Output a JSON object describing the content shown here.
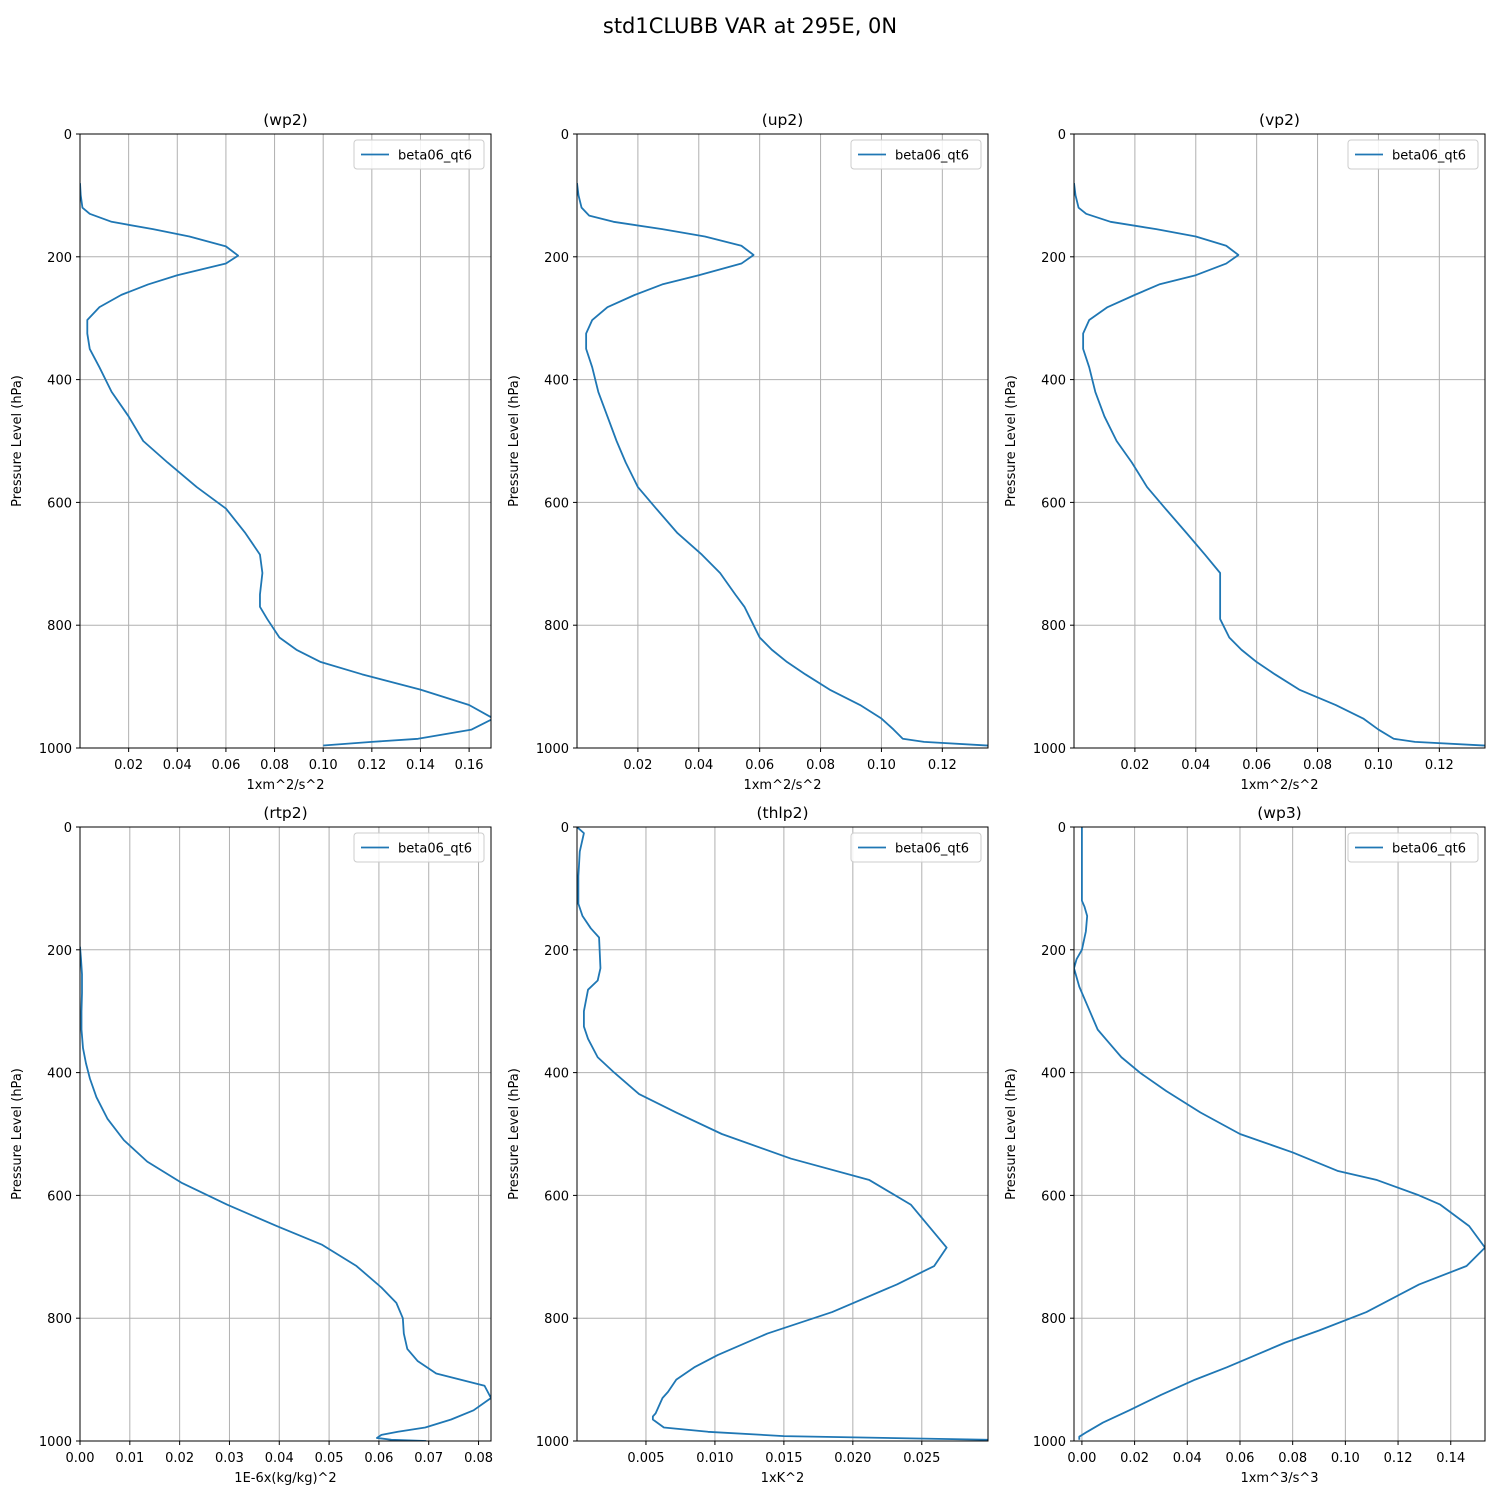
{
  "suptitle": "std1CLUBB VAR at 295E, 0N",
  "colors": {
    "series": "#1f77b4",
    "grid": "#b0b0b0",
    "axes": "#000000"
  },
  "chart_data": [
    {
      "type": "line",
      "title": "(wp2)",
      "xlabel": "1xm^2/s^2",
      "ylabel": "Pressure Level (hPa)",
      "xlim": [
        0.0,
        0.169
      ],
      "ylim": [
        1000,
        0
      ],
      "xticks": [
        0.02,
        0.04,
        0.06,
        0.08,
        0.1,
        0.12,
        0.14,
        0.16
      ],
      "xticklabels": [
        "0.02",
        "0.04",
        "0.06",
        "0.08",
        "0.10",
        "0.12",
        "0.14",
        "0.16"
      ],
      "yticks": [
        0,
        200,
        400,
        600,
        800,
        1000
      ],
      "yticklabels": [
        "0",
        "200",
        "400",
        "600",
        "800",
        "1000"
      ],
      "grid": true,
      "legend": "upper right",
      "series": [
        {
          "name": "beta06_qt6",
          "x": [
            0.0,
            0.0003,
            0.001,
            0.004,
            0.013,
            0.03,
            0.045,
            0.06,
            0.065,
            0.06,
            0.04,
            0.028,
            0.017,
            0.008,
            0.003,
            0.003,
            0.004,
            0.008,
            0.013,
            0.02,
            0.026,
            0.036,
            0.048,
            0.06,
            0.068,
            0.074,
            0.075,
            0.074,
            0.074,
            0.077,
            0.082,
            0.089,
            0.099,
            0.116,
            0.14,
            0.16,
            0.17,
            0.161,
            0.139,
            0.12,
            0.1
          ],
          "y": [
            80,
            100,
            120,
            130,
            143,
            155,
            167,
            183,
            198,
            211,
            230,
            245,
            262,
            282,
            303,
            325,
            350,
            380,
            420,
            460,
            500,
            535,
            575,
            610,
            650,
            685,
            715,
            750,
            770,
            790,
            820,
            840,
            860,
            880,
            905,
            930,
            952,
            970,
            985,
            990,
            996
          ]
        }
      ]
    },
    {
      "type": "line",
      "title": "(up2)",
      "xlabel": "1xm^2/s^2",
      "ylabel": "Pressure Level (hPa)",
      "xlim": [
        0.0,
        0.135
      ],
      "ylim": [
        1000,
        0
      ],
      "xticks": [
        0.02,
        0.04,
        0.06,
        0.08,
        0.1,
        0.12
      ],
      "xticklabels": [
        "0.02",
        "0.04",
        "0.06",
        "0.08",
        "0.10",
        "0.12"
      ],
      "yticks": [
        0,
        200,
        400,
        600,
        800,
        1000
      ],
      "yticklabels": [
        "0",
        "200",
        "400",
        "600",
        "800",
        "1000"
      ],
      "grid": true,
      "legend": "upper right",
      "series": [
        {
          "name": "beta06_qt6",
          "x": [
            0.0,
            0.0005,
            0.0015,
            0.004,
            0.012,
            0.028,
            0.042,
            0.054,
            0.058,
            0.054,
            0.04,
            0.028,
            0.019,
            0.01,
            0.005,
            0.003,
            0.003,
            0.005,
            0.007,
            0.01,
            0.013,
            0.016,
            0.02,
            0.026,
            0.033,
            0.041,
            0.047,
            0.052,
            0.055,
            0.057,
            0.06,
            0.064,
            0.069,
            0.075,
            0.083,
            0.093,
            0.1,
            0.104,
            0.107,
            0.114,
            0.135
          ],
          "y": [
            80,
            100,
            120,
            133,
            143,
            155,
            167,
            182,
            197,
            211,
            230,
            245,
            262,
            282,
            303,
            325,
            350,
            380,
            420,
            460,
            500,
            535,
            575,
            610,
            650,
            685,
            715,
            750,
            770,
            790,
            820,
            840,
            860,
            880,
            905,
            930,
            952,
            970,
            985,
            990,
            996
          ]
        }
      ]
    },
    {
      "type": "line",
      "title": "(vp2)",
      "xlabel": "1xm^2/s^2",
      "ylabel": "Pressure Level (hPa)",
      "xlim": [
        0.0,
        0.135
      ],
      "ylim": [
        1000,
        0
      ],
      "xticks": [
        0.02,
        0.04,
        0.06,
        0.08,
        0.1,
        0.12
      ],
      "xticklabels": [
        "0.02",
        "0.04",
        "0.06",
        "0.08",
        "0.10",
        "0.12"
      ],
      "yticks": [
        0,
        200,
        400,
        600,
        800,
        1000
      ],
      "yticklabels": [
        "0",
        "200",
        "400",
        "600",
        "800",
        "1000"
      ],
      "grid": true,
      "legend": "upper right",
      "series": [
        {
          "name": "beta06_qt6",
          "x": [
            0.0,
            0.0005,
            0.0015,
            0.004,
            0.012,
            0.027,
            0.04,
            0.05,
            0.054,
            0.05,
            0.04,
            0.028,
            0.02,
            0.011,
            0.005,
            0.003,
            0.003,
            0.005,
            0.007,
            0.01,
            0.014,
            0.019,
            0.024,
            0.03,
            0.037,
            0.043,
            0.048,
            0.048,
            0.048,
            0.048,
            0.051,
            0.055,
            0.06,
            0.066,
            0.074,
            0.086,
            0.095,
            0.1,
            0.105,
            0.112,
            0.135
          ],
          "y": [
            80,
            100,
            120,
            130,
            143,
            155,
            167,
            182,
            197,
            211,
            230,
            245,
            262,
            282,
            303,
            325,
            350,
            380,
            420,
            460,
            500,
            535,
            575,
            610,
            650,
            685,
            715,
            750,
            770,
            790,
            820,
            840,
            860,
            880,
            905,
            930,
            952,
            970,
            985,
            990,
            996
          ]
        }
      ]
    },
    {
      "type": "line",
      "title": "(rtp2)",
      "xlabel": "1E-6x(kg/kg)^2",
      "ylabel": "Pressure Level (hPa)",
      "xlim": [
        0.0,
        0.0825
      ],
      "ylim": [
        1000,
        0
      ],
      "xticks": [
        0.0,
        0.01,
        0.02,
        0.03,
        0.04,
        0.05,
        0.06,
        0.07,
        0.08
      ],
      "xticklabels": [
        "0.00",
        "0.01",
        "0.02",
        "0.03",
        "0.04",
        "0.05",
        "0.06",
        "0.07",
        "0.08"
      ],
      "yticks": [
        0,
        200,
        400,
        600,
        800,
        1000
      ],
      "yticklabels": [
        "0",
        "200",
        "400",
        "600",
        "800",
        "1000"
      ],
      "grid": true,
      "legend": "upper right",
      "series": [
        {
          "name": "beta06_qt6",
          "x": [
            0.0,
            0.0002,
            0.0004,
            0.0004,
            0.0003,
            0.0003,
            0.0006,
            0.0012,
            0.002,
            0.0033,
            0.0055,
            0.0088,
            0.0135,
            0.0205,
            0.0295,
            0.0395,
            0.0485,
            0.0555,
            0.0605,
            0.0635,
            0.0648,
            0.065,
            0.0657,
            0.0678,
            0.0715,
            0.0812,
            0.0825,
            0.079,
            0.0745,
            0.0693,
            0.0638,
            0.0605,
            0.0596,
            0.0625,
            0.0695
          ],
          "y": [
            195,
            215,
            240,
            270,
            300,
            330,
            360,
            385,
            410,
            440,
            475,
            510,
            545,
            580,
            615,
            650,
            680,
            715,
            750,
            775,
            800,
            825,
            850,
            870,
            890,
            910,
            930,
            950,
            965,
            978,
            985,
            990,
            995,
            998,
            1000
          ]
        }
      ]
    },
    {
      "type": "line",
      "title": "(thlp2)",
      "xlabel": "1xK^2",
      "ylabel": "Pressure Level (hPa)",
      "xlim": [
        0.0,
        0.0298
      ],
      "ylim": [
        1000,
        0
      ],
      "xticks": [
        0.005,
        0.01,
        0.015,
        0.02,
        0.025
      ],
      "xticklabels": [
        "0.005",
        "0.010",
        "0.015",
        "0.020",
        "0.025"
      ],
      "yticks": [
        0,
        200,
        400,
        600,
        800,
        1000
      ],
      "yticklabels": [
        "0",
        "200",
        "400",
        "600",
        "800",
        "1000"
      ],
      "grid": true,
      "legend": "upper right",
      "series": [
        {
          "name": "beta06_qt6",
          "x": [
            0.0,
            0.0005,
            0.0002,
            0.0001,
            0.0001,
            0.0001,
            0.0004,
            0.001,
            0.0016,
            0.0017,
            0.0015,
            0.0008,
            0.0005,
            0.0005,
            0.0008,
            0.0015,
            0.0027,
            0.0045,
            0.0072,
            0.0105,
            0.0155,
            0.0212,
            0.0242,
            0.0255,
            0.0268,
            0.0259,
            0.0232,
            0.0185,
            0.0138,
            0.0102,
            0.0085,
            0.0072,
            0.0066,
            0.0062,
            0.006,
            0.0057,
            0.0055,
            0.0055,
            0.0063,
            0.0095,
            0.015,
            0.0298
          ],
          "y": [
            0,
            10,
            40,
            80,
            110,
            125,
            145,
            165,
            180,
            230,
            250,
            265,
            300,
            325,
            345,
            375,
            400,
            435,
            465,
            500,
            540,
            575,
            615,
            650,
            685,
            715,
            745,
            790,
            825,
            860,
            880,
            900,
            920,
            930,
            940,
            955,
            960,
            965,
            978,
            985,
            992,
            998
          ]
        }
      ]
    },
    {
      "type": "line",
      "title": "(wp3)",
      "xlabel": "1xm^3/s^3",
      "ylabel": "Pressure Level (hPa)",
      "xlim": [
        -0.003,
        0.153
      ],
      "ylim": [
        1000,
        0
      ],
      "xticks": [
        0.0,
        0.02,
        0.04,
        0.06,
        0.08,
        0.1,
        0.12,
        0.14
      ],
      "xticklabels": [
        "0.00",
        "0.02",
        "0.04",
        "0.06",
        "0.08",
        "0.10",
        "0.12",
        "0.14"
      ],
      "yticks": [
        0,
        200,
        400,
        600,
        800,
        1000
      ],
      "yticklabels": [
        "0",
        "200",
        "400",
        "600",
        "800",
        "1000"
      ],
      "grid": true,
      "legend": "upper right",
      "series": [
        {
          "name": "beta06_qt6",
          "x": [
            0.0,
            0.0,
            0.0,
            0.0,
            0.001,
            0.002,
            0.0015,
            0.0,
            -0.002,
            -0.003,
            -0.001,
            0.002,
            0.004,
            0.006,
            0.01,
            0.015,
            0.022,
            0.032,
            0.045,
            0.06,
            0.08,
            0.097,
            0.112,
            0.128,
            0.136,
            0.147,
            0.153,
            0.146,
            0.128,
            0.108,
            0.09,
            0.077,
            0.066,
            0.055,
            0.043,
            0.03,
            0.018,
            0.008,
            0.002,
            -0.001,
            -0.001
          ],
          "y": [
            0,
            30,
            80,
            120,
            130,
            145,
            170,
            200,
            215,
            230,
            260,
            290,
            310,
            330,
            350,
            375,
            400,
            430,
            465,
            500,
            530,
            560,
            575,
            600,
            615,
            650,
            685,
            715,
            745,
            790,
            820,
            840,
            860,
            880,
            900,
            925,
            950,
            970,
            985,
            993,
            998
          ]
        }
      ]
    }
  ]
}
